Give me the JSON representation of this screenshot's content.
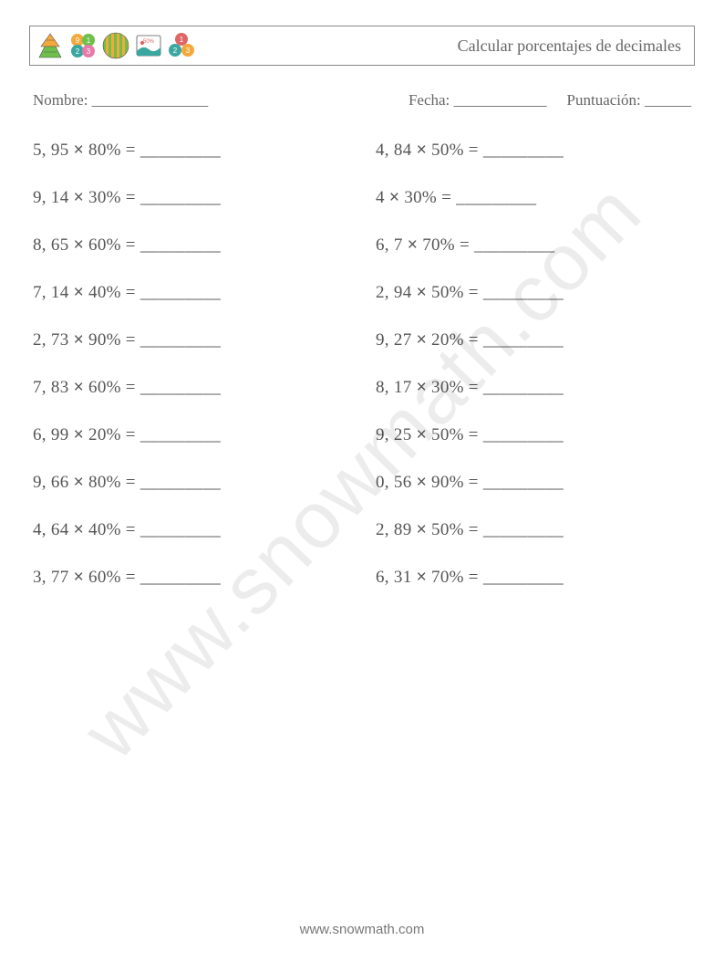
{
  "header": {
    "title": "Calcular porcentajes de decimales",
    "icons": [
      {
        "name": "triangle-stack-icon"
      },
      {
        "name": "four-circles-icon"
      },
      {
        "name": "striped-circle-icon"
      },
      {
        "name": "picture-card-icon"
      },
      {
        "name": "three-circles-icon"
      }
    ],
    "colors": {
      "orange": "#f4a93c",
      "green": "#6fbf4b",
      "teal": "#3aa6a0",
      "red": "#e06666",
      "blue": "#4a90d9",
      "pink": "#e67ba8",
      "border": "#888888"
    }
  },
  "meta": {
    "name_label": "Nombre: _______________",
    "date_label": "Fecha: ____________",
    "score_label": "Puntuación: ______"
  },
  "text": {
    "answer_blank": "_________",
    "multiply_symbol": "×",
    "equals": "="
  },
  "problems": {
    "column1": [
      {
        "a": "5, 95",
        "b": "80%"
      },
      {
        "a": "9, 14",
        "b": "30%"
      },
      {
        "a": "8, 65",
        "b": "60%"
      },
      {
        "a": "7, 14",
        "b": "40%"
      },
      {
        "a": "2, 73",
        "b": "90%"
      },
      {
        "a": "7, 83",
        "b": "60%"
      },
      {
        "a": "6, 99",
        "b": "20%"
      },
      {
        "a": "9, 66",
        "b": "80%"
      },
      {
        "a": "4, 64",
        "b": "40%"
      },
      {
        "a": "3, 77",
        "b": "60%"
      }
    ],
    "column2": [
      {
        "a": "4, 84",
        "b": "50%"
      },
      {
        "a": "4",
        "b": "30%"
      },
      {
        "a": "6, 7",
        "b": "70%"
      },
      {
        "a": "2, 94",
        "b": "50%"
      },
      {
        "a": "9, 27",
        "b": "20%"
      },
      {
        "a": "8, 17",
        "b": "30%"
      },
      {
        "a": "9, 25",
        "b": "50%"
      },
      {
        "a": "0, 56",
        "b": "90%"
      },
      {
        "a": "2, 89",
        "b": "50%"
      },
      {
        "a": "6, 31",
        "b": "70%"
      }
    ]
  },
  "watermark": "www.snowmath.com",
  "footer": "www.snowmath.com"
}
